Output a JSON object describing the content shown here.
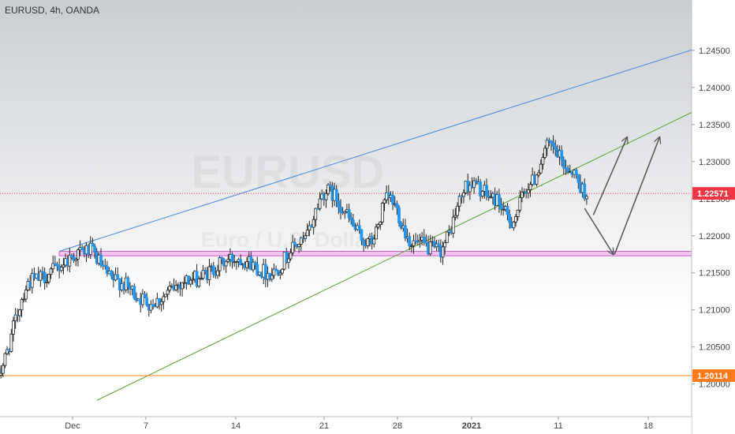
{
  "header": {
    "symbol_info": "EURUSD, 4h, OANDA"
  },
  "watermark": {
    "symbol": "EURUSD",
    "description": "Euro / U.S. Dollar"
  },
  "colors": {
    "bg_top": "#c9cdd2",
    "bg_bottom": "#ffffff",
    "candle_up": "#ffffff",
    "candle_down": "#2196f3",
    "wick": "#222222",
    "upper_trend": "#4a86d8",
    "lower_trend": "#5aa02c",
    "support_zone_fill": "#f3b6f0",
    "support_zone_border": "#d35fd0",
    "current_price": "#f23645",
    "level_line": "#ff7a1a",
    "arrow": "#555555",
    "axis_bg": "#ffffff",
    "grid": "#e6e6e6"
  },
  "chart_data": {
    "type": "candlestick",
    "title": "EURUSD, 4h, OANDA",
    "x_ticks": [
      "Dec",
      "7",
      "14",
      "21",
      "28",
      "2021",
      "11",
      "18"
    ],
    "y_ticks": [
      "1.20000",
      "1.20500",
      "1.21000",
      "1.21500",
      "1.22000",
      "1.22500",
      "1.23000",
      "1.23500",
      "1.24000",
      "1.24500"
    ],
    "ylim": [
      1.1956,
      1.2518
    ],
    "grid": false,
    "price_labels": [
      {
        "id": "current",
        "value": 1.22571,
        "label": "1.22571",
        "line_style": "dotted"
      },
      {
        "id": "level",
        "value": 1.20114,
        "label": "1.20114",
        "line_style": "solid"
      }
    ],
    "anchors": [
      {
        "value": 1.201,
        "day": -6.0
      },
      {
        "value": 1.214,
        "day": -3.0
      },
      {
        "value": 1.218,
        "day": 1.5
      },
      {
        "value": 1.214,
        "day": 3.5
      },
      {
        "value": 1.211,
        "day": 6.5
      },
      {
        "value": 1.214,
        "day": 9.5
      },
      {
        "value": 1.217,
        "day": 13.5
      },
      {
        "value": 1.215,
        "day": 16.0
      },
      {
        "value": 1.219,
        "day": 18.5
      },
      {
        "value": 1.226,
        "day": 20.5
      },
      {
        "value": 1.219,
        "day": 24.0
      },
      {
        "value": 1.225,
        "day": 25.5
      },
      {
        "value": 1.219,
        "day": 27.5
      },
      {
        "value": 1.218,
        "day": 29.5
      },
      {
        "value": 1.227,
        "day": 32.0
      },
      {
        "value": 1.225,
        "day": 34.0
      },
      {
        "value": 1.222,
        "day": 35.3
      },
      {
        "value": 1.227,
        "day": 36.8
      },
      {
        "value": 1.232,
        "day": 38.3
      },
      {
        "value": 1.229,
        "day": 40.0
      },
      {
        "value": 1.226,
        "day": 41.2
      }
    ],
    "support_zone": {
      "low": 1.2173,
      "high": 1.2179,
      "start_day": -1.0,
      "end_day": 50.0
    },
    "upper_trendline": {
      "start": {
        "day": -1.0,
        "value": 1.2179
      },
      "end": {
        "day": 56.5,
        "value": 1.2488
      }
    },
    "lower_trendline": {
      "start": {
        "day": 2.0,
        "value": 1.1978
      },
      "end": {
        "day": 56.5,
        "value": 1.2423
      }
    },
    "projection_arrows": [
      {
        "from": {
          "day": 41.0,
          "value": 1.2237
        },
        "to": {
          "day": 43.3,
          "value": 1.2175
        }
      },
      {
        "from": {
          "day": 43.4,
          "value": 1.2175
        },
        "to": {
          "day": 47.0,
          "value": 1.2333
        }
      },
      {
        "from": {
          "day": 41.7,
          "value": 1.2228
        },
        "to": {
          "day": 44.4,
          "value": 1.2333
        }
      }
    ]
  }
}
